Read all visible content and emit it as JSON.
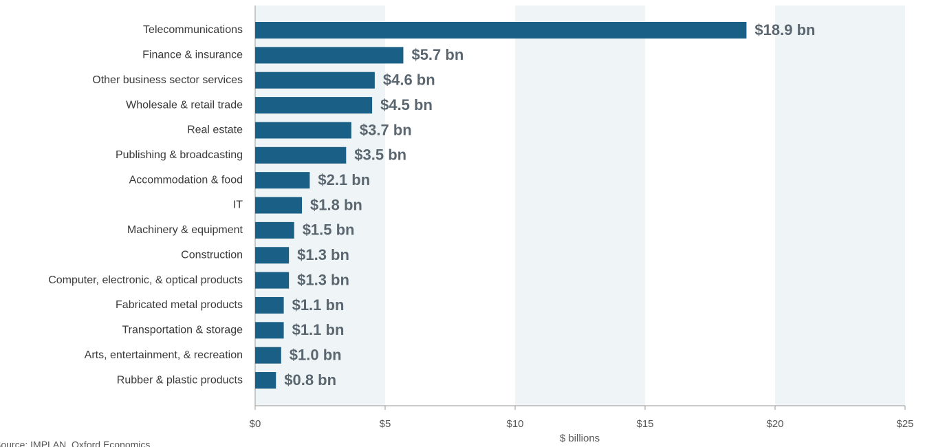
{
  "chart_data": {
    "type": "bar",
    "orientation": "horizontal",
    "categories": [
      "Telecommunications",
      "Finance & insurance",
      "Other business sector services",
      "Wholesale & retail trade",
      "Real estate",
      "Publishing & broadcasting",
      "Accommodation & food",
      "IT",
      "Machinery & equipment",
      "Construction",
      "Computer, electronic, & optical products",
      "Fabricated metal products",
      "Transportation & storage",
      "Arts, entertainment, & recreation",
      "Rubber & plastic products"
    ],
    "values": [
      18.9,
      5.7,
      4.6,
      4.5,
      3.7,
      3.5,
      2.1,
      1.8,
      1.5,
      1.3,
      1.3,
      1.1,
      1.1,
      1.0,
      0.8
    ],
    "value_labels": [
      "$18.9 bn",
      "$5.7 bn",
      "$4.6 bn",
      "$4.5 bn",
      "$3.7 bn",
      "$3.5 bn",
      "$2.1 bn",
      "$1.8 bn",
      "$1.5 bn",
      "$1.3 bn",
      "$1.3 bn",
      "$1.1 bn",
      "$1.1 bn",
      "$1.0 bn",
      "$0.8 bn"
    ],
    "color": "#1a5f85",
    "band_color": "#eff4f6",
    "xlim": [
      0,
      25
    ],
    "xticks": [
      {
        "value": 0,
        "label": "$0"
      },
      {
        "value": 5,
        "label": "$5"
      },
      {
        "value": 10,
        "label": "$10"
      },
      {
        "value": 15,
        "label": "$15"
      },
      {
        "value": 20,
        "label": "$20"
      },
      {
        "value": 25,
        "label": "$25"
      }
    ],
    "xlabel": "$ billions",
    "source": "Source:  IMPLAN, Oxford Economics"
  }
}
